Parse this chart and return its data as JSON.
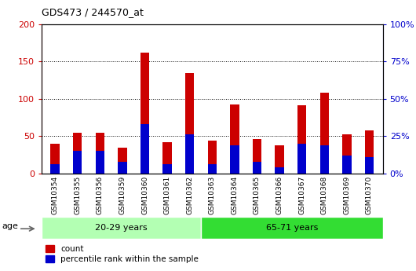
{
  "title": "GDS473 / 244570_at",
  "samples": [
    "GSM10354",
    "GSM10355",
    "GSM10356",
    "GSM10359",
    "GSM10360",
    "GSM10361",
    "GSM10362",
    "GSM10363",
    "GSM10364",
    "GSM10365",
    "GSM10366",
    "GSM10367",
    "GSM10368",
    "GSM10369",
    "GSM10370"
  ],
  "count_values": [
    40,
    55,
    55,
    35,
    162,
    42,
    135,
    44,
    93,
    46,
    38,
    92,
    108,
    52,
    58
  ],
  "percentile_values": [
    6,
    15,
    15,
    8,
    33,
    6,
    26,
    6,
    19,
    8,
    4,
    20,
    19,
    12,
    11
  ],
  "group_labels": [
    "20-29 years",
    "65-71 years"
  ],
  "group_sizes": [
    7,
    8
  ],
  "age_label": "age",
  "count_color": "#cc0000",
  "percentile_color": "#0000cc",
  "group1_color": "#b3ffb3",
  "group2_color": "#33dd33",
  "tick_label_color_left": "#cc0000",
  "tick_label_color_right": "#0000cc",
  "ylim_left": [
    0,
    200
  ],
  "ylim_right": [
    0,
    100
  ],
  "yticks_left": [
    0,
    50,
    100,
    150,
    200
  ],
  "yticks_right": [
    0,
    25,
    50,
    75,
    100
  ],
  "legend_label_count": "count",
  "legend_label_percentile": "percentile rank within the sample",
  "bar_width": 0.4,
  "xtick_bg_color": "#c8c8c8",
  "plot_bg_color": "#ffffff"
}
